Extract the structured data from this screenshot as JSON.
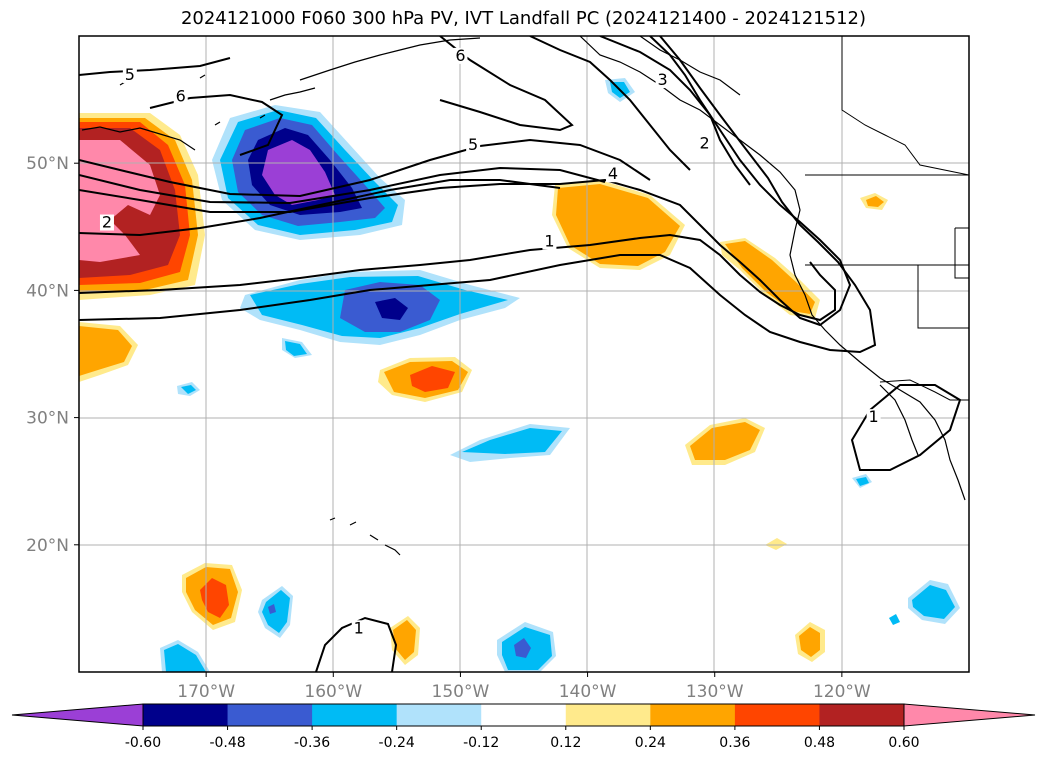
{
  "title": "2024121000 F060 300 hPa PV, IVT Landfall PC (2024121400 - 2024121512)",
  "map": {
    "lon_range": [
      -180,
      -110
    ],
    "lat_range": [
      10,
      60
    ],
    "lon_ticks": [
      {
        "lon": -170,
        "label": "170°W"
      },
      {
        "lon": -160,
        "label": "160°W"
      },
      {
        "lon": -150,
        "label": "150°W"
      },
      {
        "lon": -140,
        "label": "140°W"
      },
      {
        "lon": -130,
        "label": "130°W"
      },
      {
        "lon": -120,
        "label": "120°W"
      }
    ],
    "lat_ticks": [
      {
        "lat": 20,
        "label": "20°N"
      },
      {
        "lat": 30,
        "label": "30°N"
      },
      {
        "lat": 40,
        "label": "40°N"
      },
      {
        "lat": 50,
        "label": "50°N"
      }
    ],
    "gridlines": true,
    "contour_labels": [
      {
        "label": "5",
        "lon": -176,
        "lat": 56.7
      },
      {
        "label": "6",
        "lon": -172,
        "lat": 55
      },
      {
        "label": "6",
        "lon": -150,
        "lat": 58.2
      },
      {
        "label": "5",
        "lon": -149,
        "lat": 51.2
      },
      {
        "label": "4",
        "lon": -138,
        "lat": 48.9
      },
      {
        "label": "1",
        "lon": -143,
        "lat": 43.6
      },
      {
        "label": "2",
        "lon": -130.8,
        "lat": 51.3
      },
      {
        "label": "2",
        "lon": -177.8,
        "lat": 45.1
      },
      {
        "label": "1",
        "lon": -117.5,
        "lat": 29.8
      },
      {
        "label": "1",
        "lon": -158,
        "lat": 13.2
      },
      {
        "label": "3",
        "lon": -134.1,
        "lat": 56.3
      }
    ]
  },
  "colorbar": {
    "ticks": [
      "-0.60",
      "-0.48",
      "-0.36",
      "-0.24",
      "-0.12",
      "0.12",
      "0.24",
      "0.36",
      "0.48",
      "0.60"
    ],
    "colors": [
      "#9b3fd6",
      "#00008b",
      "#3a5bd1",
      "#00bbf5",
      "#b0e2fb",
      "#ffffff",
      "#ffea8c",
      "#ffa500",
      "#ff4500",
      "#b22222",
      "#ff88aa"
    ]
  }
}
